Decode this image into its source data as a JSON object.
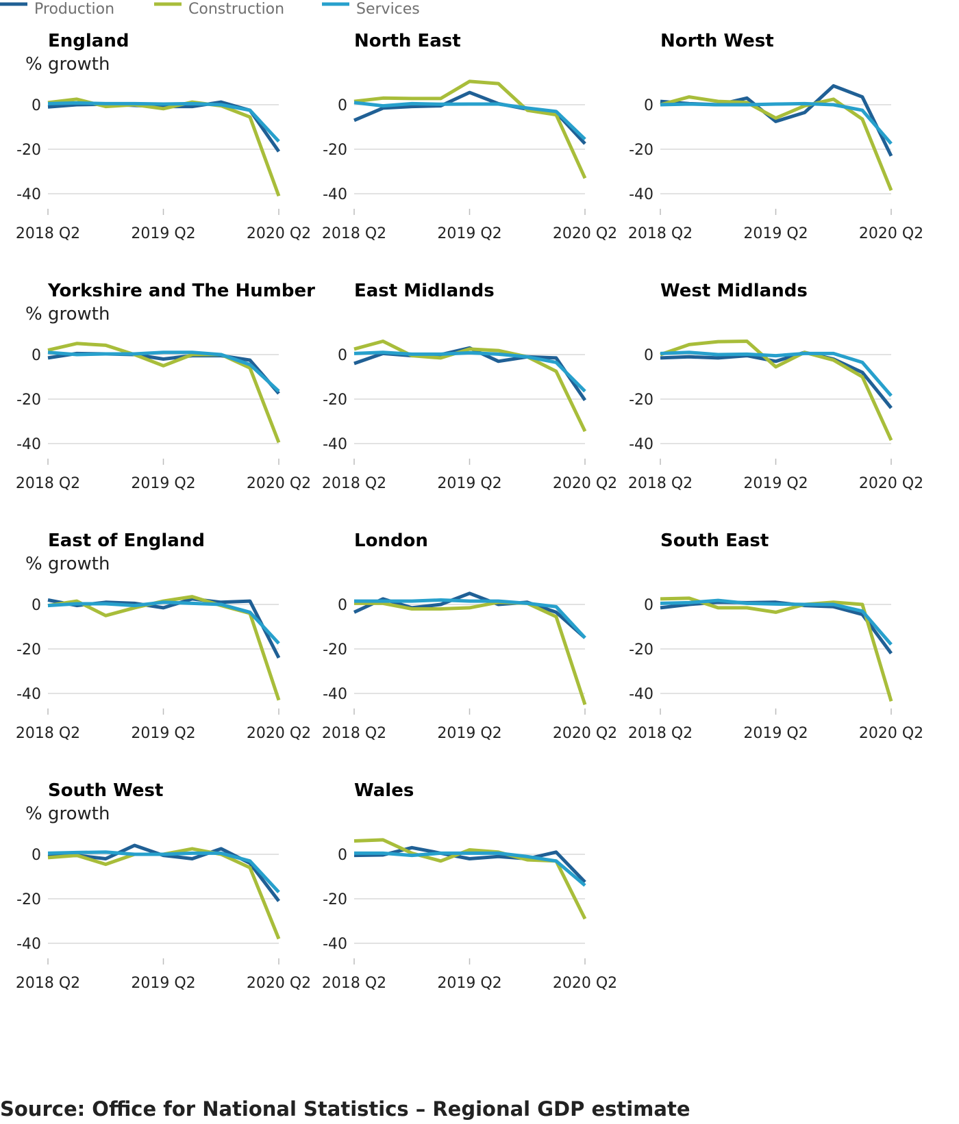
{
  "source": "Source: Office for National Statistics – Regional GDP estimate",
  "colors": {
    "Production": "#206095",
    "Construction": "#a8bd3a",
    "Services": "#27a0cc",
    "grid": "#d9d9d9",
    "axis": "#bcbcbc"
  },
  "chart_data": {
    "type": "line",
    "legend_position": "top-left",
    "legend": [
      "Production",
      "Construction",
      "Services"
    ],
    "x": [
      "2018 Q2",
      "2018 Q3",
      "2018 Q4",
      "2019 Q1",
      "2019 Q2",
      "2019 Q3",
      "2019 Q4",
      "2020 Q1",
      "2020 Q2"
    ],
    "xticks": [
      "2018 Q2",
      "2019 Q2",
      "2020 Q2"
    ],
    "yticks": [
      0,
      -20,
      -40
    ],
    "ylim": [
      -50,
      12
    ],
    "grid": true,
    "panels": [
      {
        "title": "England",
        "ylabel": "% growth",
        "series": [
          {
            "name": "Production",
            "values": [
              -1,
              0,
              0.2,
              -0.3,
              -0.8,
              -0.8,
              1.2,
              -2.5,
              -21
            ]
          },
          {
            "name": "Construction",
            "values": [
              1,
              2.5,
              -0.8,
              0,
              -1.8,
              1.2,
              -0.5,
              -5.5,
              -41
            ]
          },
          {
            "name": "Services",
            "values": [
              0.5,
              0.8,
              0.5,
              0.5,
              0.3,
              0.5,
              0,
              -2.5,
              -16.5
            ]
          }
        ]
      },
      {
        "title": "North East",
        "ylabel": "",
        "series": [
          {
            "name": "Production",
            "values": [
              -7,
              -1.5,
              -0.8,
              -0.5,
              5.5,
              0.5,
              -2,
              -3.5,
              -17.5
            ]
          },
          {
            "name": "Construction",
            "values": [
              1.5,
              3,
              2.8,
              2.8,
              10.5,
              9.5,
              -2.5,
              -4.5,
              -33
            ]
          },
          {
            "name": "Services",
            "values": [
              1,
              -0.5,
              0.5,
              0.2,
              0.3,
              0.3,
              -1.5,
              -3,
              -15.5
            ]
          }
        ]
      },
      {
        "title": "North West",
        "ylabel": "",
        "series": [
          {
            "name": "Production",
            "values": [
              1.5,
              0.5,
              0,
              3,
              -7.5,
              -3.5,
              8.5,
              3.5,
              -23
            ]
          },
          {
            "name": "Construction",
            "values": [
              0,
              3.5,
              1.5,
              1,
              -6,
              -0.5,
              2.5,
              -6.5,
              -38.5
            ]
          },
          {
            "name": "Services",
            "values": [
              0,
              0.3,
              0,
              0,
              0.3,
              0.5,
              0,
              -2.5,
              -17.5
            ]
          }
        ]
      },
      {
        "title": "Yorkshire and The Humber",
        "ylabel": "% growth",
        "series": [
          {
            "name": "Production",
            "values": [
              -1.5,
              0.5,
              0.3,
              0,
              -2,
              -0.5,
              -0.5,
              -2.5,
              -17.5
            ]
          },
          {
            "name": "Construction",
            "values": [
              2,
              5,
              4.2,
              0,
              -5,
              0,
              0,
              -6,
              -39.5
            ]
          },
          {
            "name": "Services",
            "values": [
              1,
              0,
              0.3,
              0.3,
              1,
              1,
              0,
              -4.5,
              -16.5
            ]
          }
        ]
      },
      {
        "title": "East Midlands",
        "ylabel": "",
        "series": [
          {
            "name": "Production",
            "values": [
              -4,
              0.5,
              -0.5,
              0,
              3,
              -3,
              -1,
              -1.5,
              -20.5
            ]
          },
          {
            "name": "Construction",
            "values": [
              2.5,
              6,
              -0.5,
              -1.5,
              2.5,
              1.8,
              -1,
              -7.5,
              -34.5
            ]
          },
          {
            "name": "Services",
            "values": [
              0.5,
              1,
              0.2,
              0.2,
              0.8,
              0.2,
              -1,
              -3.5,
              -16.5
            ]
          }
        ]
      },
      {
        "title": "West Midlands",
        "ylabel": "",
        "series": [
          {
            "name": "Production",
            "values": [
              -1.5,
              -1,
              -1.5,
              -0.5,
              -3,
              1,
              -2,
              -8,
              -24
            ]
          },
          {
            "name": "Construction",
            "values": [
              0,
              4.5,
              5.8,
              6,
              -5.5,
              1,
              -2.5,
              -10,
              -38.5
            ]
          },
          {
            "name": "Services",
            "values": [
              0.5,
              1,
              0,
              0.2,
              -0.5,
              0.5,
              0.5,
              -3.5,
              -18.5
            ]
          }
        ]
      },
      {
        "title": "East of England",
        "ylabel": "% growth",
        "series": [
          {
            "name": "Production",
            "values": [
              2,
              -0.5,
              1,
              0.5,
              -1.5,
              2.5,
              1,
              1.5,
              -24
            ]
          },
          {
            "name": "Construction",
            "values": [
              -0.5,
              1.5,
              -5,
              -1.5,
              1.5,
              3.5,
              -0.5,
              -4,
              -43
            ]
          },
          {
            "name": "Services",
            "values": [
              -0.5,
              0.3,
              0.3,
              -0.5,
              1,
              0.5,
              0,
              -3.5,
              -17.5
            ]
          }
        ]
      },
      {
        "title": "London",
        "ylabel": "",
        "series": [
          {
            "name": "Production",
            "values": [
              -3.5,
              2.5,
              -1.5,
              0,
              5,
              0,
              1,
              -3.5,
              -15
            ]
          },
          {
            "name": "Construction",
            "values": [
              0.5,
              0.5,
              -2,
              -2,
              -1.5,
              1,
              0.5,
              -5.5,
              -45
            ]
          },
          {
            "name": "Services",
            "values": [
              1.5,
              1.5,
              1.5,
              2,
              1.5,
              1.5,
              0.5,
              -1,
              -15
            ]
          }
        ]
      },
      {
        "title": "South East",
        "ylabel": "",
        "series": [
          {
            "name": "Production",
            "values": [
              -1.5,
              0,
              1,
              0.8,
              1,
              -0.5,
              -1,
              -4.5,
              -22
            ]
          },
          {
            "name": "Construction",
            "values": [
              2.5,
              2.8,
              -1.5,
              -1.5,
              -3.5,
              0,
              1,
              0,
              -43.5
            ]
          },
          {
            "name": "Services",
            "values": [
              0.5,
              0.8,
              1.8,
              0.5,
              0.2,
              0,
              0,
              -3,
              -18
            ]
          }
        ]
      },
      {
        "title": "South West",
        "ylabel": "% growth",
        "series": [
          {
            "name": "Production",
            "values": [
              -1,
              -0.5,
              -2,
              4,
              -0.5,
              -2,
              2.5,
              -4,
              -21
            ]
          },
          {
            "name": "Construction",
            "values": [
              -1.5,
              -0.5,
              -4.5,
              0,
              0,
              2.5,
              0,
              -6,
              -38
            ]
          },
          {
            "name": "Services",
            "values": [
              0.5,
              0.8,
              1,
              0,
              0,
              0.5,
              0.5,
              -3,
              -17
            ]
          }
        ]
      },
      {
        "title": "Wales",
        "ylabel": "",
        "series": [
          {
            "name": "Production",
            "values": [
              -0.5,
              -0.3,
              3,
              0.5,
              -2,
              -1,
              -2,
              1,
              -12.5
            ]
          },
          {
            "name": "Construction",
            "values": [
              6,
              6.5,
              0.5,
              -3,
              2,
              1,
              -2.5,
              -3,
              -29
            ]
          },
          {
            "name": "Services",
            "values": [
              0.5,
              0.5,
              -0.5,
              0.5,
              0.5,
              0.5,
              -1,
              -3,
              -14
            ]
          }
        ]
      }
    ]
  }
}
